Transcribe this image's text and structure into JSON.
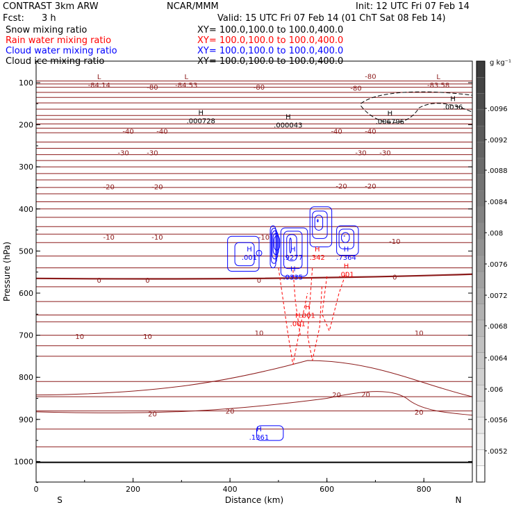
{
  "header": {
    "model": "CONTRAST  3km ARW",
    "org": "NCAR/MMM",
    "init": "Init: 12 UTC Fri 07 Feb 14",
    "fcst_label": "Fcst:",
    "fcst_value": "3 h",
    "valid": "Valid: 15 UTC Fri 07 Feb 14 (01 ChT Sat 08 Feb 14)"
  },
  "fields": [
    {
      "name": "Snow mixing ratio",
      "xy": "XY= 100.0,100.0 to 100.0,400.0",
      "color": "#000000"
    },
    {
      "name": "Rain water mixing ratio",
      "xy": "XY= 100.0,100.0 to 100.0,400.0",
      "color": "#ff0000"
    },
    {
      "name": "Cloud water mixing ratio",
      "xy": "XY= 100.0,100.0 to 100.0,400.0",
      "color": "#0000ff"
    },
    {
      "name": "Cloud ice mixing ratio",
      "xy": "XY= 100.0,100.0 to 100.0,400.0",
      "color": "#000000"
    }
  ],
  "colorbar": {
    "units": "g kg⁻¹",
    "labels": [
      ".0096",
      ".0092",
      ".0088",
      ".0084",
      ".008",
      ".0076",
      ".0072",
      ".0068",
      ".0064",
      ".006",
      ".0056",
      ".0052"
    ]
  },
  "chart_data": {
    "type": "contour",
    "xlabel": "Distance (km)",
    "ylabel": "Pressure (hPa)",
    "xlim": [
      0,
      900
    ],
    "ylim": [
      1050,
      50
    ],
    "xticks": [
      0,
      200,
      400,
      600,
      800
    ],
    "yticks": [
      100,
      200,
      300,
      400,
      500,
      600,
      700,
      800,
      900,
      1000
    ],
    "x_endpoints": {
      "left": "S",
      "right": "N"
    },
    "temperature_contour_color": "#8b1a1a",
    "temperature_labels": [
      {
        "text": "-80",
        "x": 240,
        "p": 110
      },
      {
        "text": "-80",
        "x": 460,
        "p": 110
      },
      {
        "text": "-80",
        "x": 660,
        "p": 112
      },
      {
        "text": "-80",
        "x": 690,
        "p": 84
      },
      {
        "text": "-40",
        "x": 190,
        "p": 215
      },
      {
        "text": "-40",
        "x": 260,
        "p": 215
      },
      {
        "text": "-40",
        "x": 620,
        "p": 215
      },
      {
        "text": "-40",
        "x": 690,
        "p": 215
      },
      {
        "text": "-30",
        "x": 180,
        "p": 266
      },
      {
        "text": "-30",
        "x": 240,
        "p": 266
      },
      {
        "text": "-30",
        "x": 670,
        "p": 266
      },
      {
        "text": "-30",
        "x": 720,
        "p": 266
      },
      {
        "text": "-20",
        "x": 150,
        "p": 347
      },
      {
        "text": "-20",
        "x": 250,
        "p": 347
      },
      {
        "text": "-20",
        "x": 630,
        "p": 345
      },
      {
        "text": "-20",
        "x": 690,
        "p": 345
      },
      {
        "text": "-10",
        "x": 150,
        "p": 466
      },
      {
        "text": "-10",
        "x": 250,
        "p": 466
      },
      {
        "text": "-10",
        "x": 470,
        "p": 466
      },
      {
        "text": "-10",
        "x": 740,
        "p": 476
      },
      {
        "text": "0",
        "x": 130,
        "p": 569
      },
      {
        "text": "0",
        "x": 230,
        "p": 569
      },
      {
        "text": "0",
        "x": 460,
        "p": 569
      },
      {
        "text": "0",
        "x": 740,
        "p": 561
      },
      {
        "text": "10",
        "x": 90,
        "p": 702
      },
      {
        "text": "10",
        "x": 230,
        "p": 702
      },
      {
        "text": "10",
        "x": 460,
        "p": 694
      },
      {
        "text": "10",
        "x": 790,
        "p": 694
      },
      {
        "text": "20",
        "x": 240,
        "p": 886
      },
      {
        "text": "20",
        "x": 400,
        "p": 880
      },
      {
        "text": "20",
        "x": 620,
        "p": 841
      },
      {
        "text": "20",
        "x": 680,
        "p": 840
      },
      {
        "text": "20",
        "x": 790,
        "p": 882
      }
    ],
    "extrema": [
      {
        "kind": "L",
        "value": "-84.14",
        "x": 130,
        "p": 98,
        "color": "#8b1a1a"
      },
      {
        "kind": "L",
        "value": "-84.53",
        "x": 310,
        "p": 98,
        "color": "#8b1a1a"
      },
      {
        "kind": "L",
        "value": "-83.58",
        "x": 830,
        "p": 98,
        "color": "#8b1a1a"
      },
      {
        "kind": "H",
        "value": ".000728",
        "x": 340,
        "p": 183,
        "color": "#000000"
      },
      {
        "kind": "H",
        "value": ".000043",
        "x": 520,
        "p": 193,
        "color": "#000000"
      },
      {
        "kind": "H",
        "value": ".006796",
        "x": 730,
        "p": 185,
        "color": "#000000"
      },
      {
        "kind": "H",
        "value": ".0036",
        "x": 860,
        "p": 150,
        "color": "#000000"
      },
      {
        "kind": "H",
        "value": ".001",
        "x": 440,
        "p": 508,
        "color": "#0000ff"
      },
      {
        "kind": "H",
        "value": ".9277",
        "x": 530,
        "p": 508,
        "color": "#0000ff"
      },
      {
        "kind": "H",
        "value": ".342",
        "x": 580,
        "p": 508,
        "color": "#ff0000"
      },
      {
        "kind": "H",
        "value": ".7364",
        "x": 640,
        "p": 508,
        "color": "#0000ff"
      },
      {
        "kind": "H",
        "value": ".0335",
        "x": 530,
        "p": 555,
        "color": "#0000ff"
      },
      {
        "kind": "H",
        "value": ".001",
        "x": 640,
        "p": 548,
        "color": "#ff0000"
      },
      {
        "kind": "H",
        "value": ".001",
        "x": 560,
        "p": 645,
        "color": "#ff0000"
      },
      {
        "kind": "H",
        "value": ".001",
        "x": 540,
        "p": 665,
        "color": "#ff0000"
      },
      {
        "kind": "H",
        "value": ".1361",
        "x": 460,
        "p": 935,
        "color": "#0000ff"
      }
    ]
  }
}
